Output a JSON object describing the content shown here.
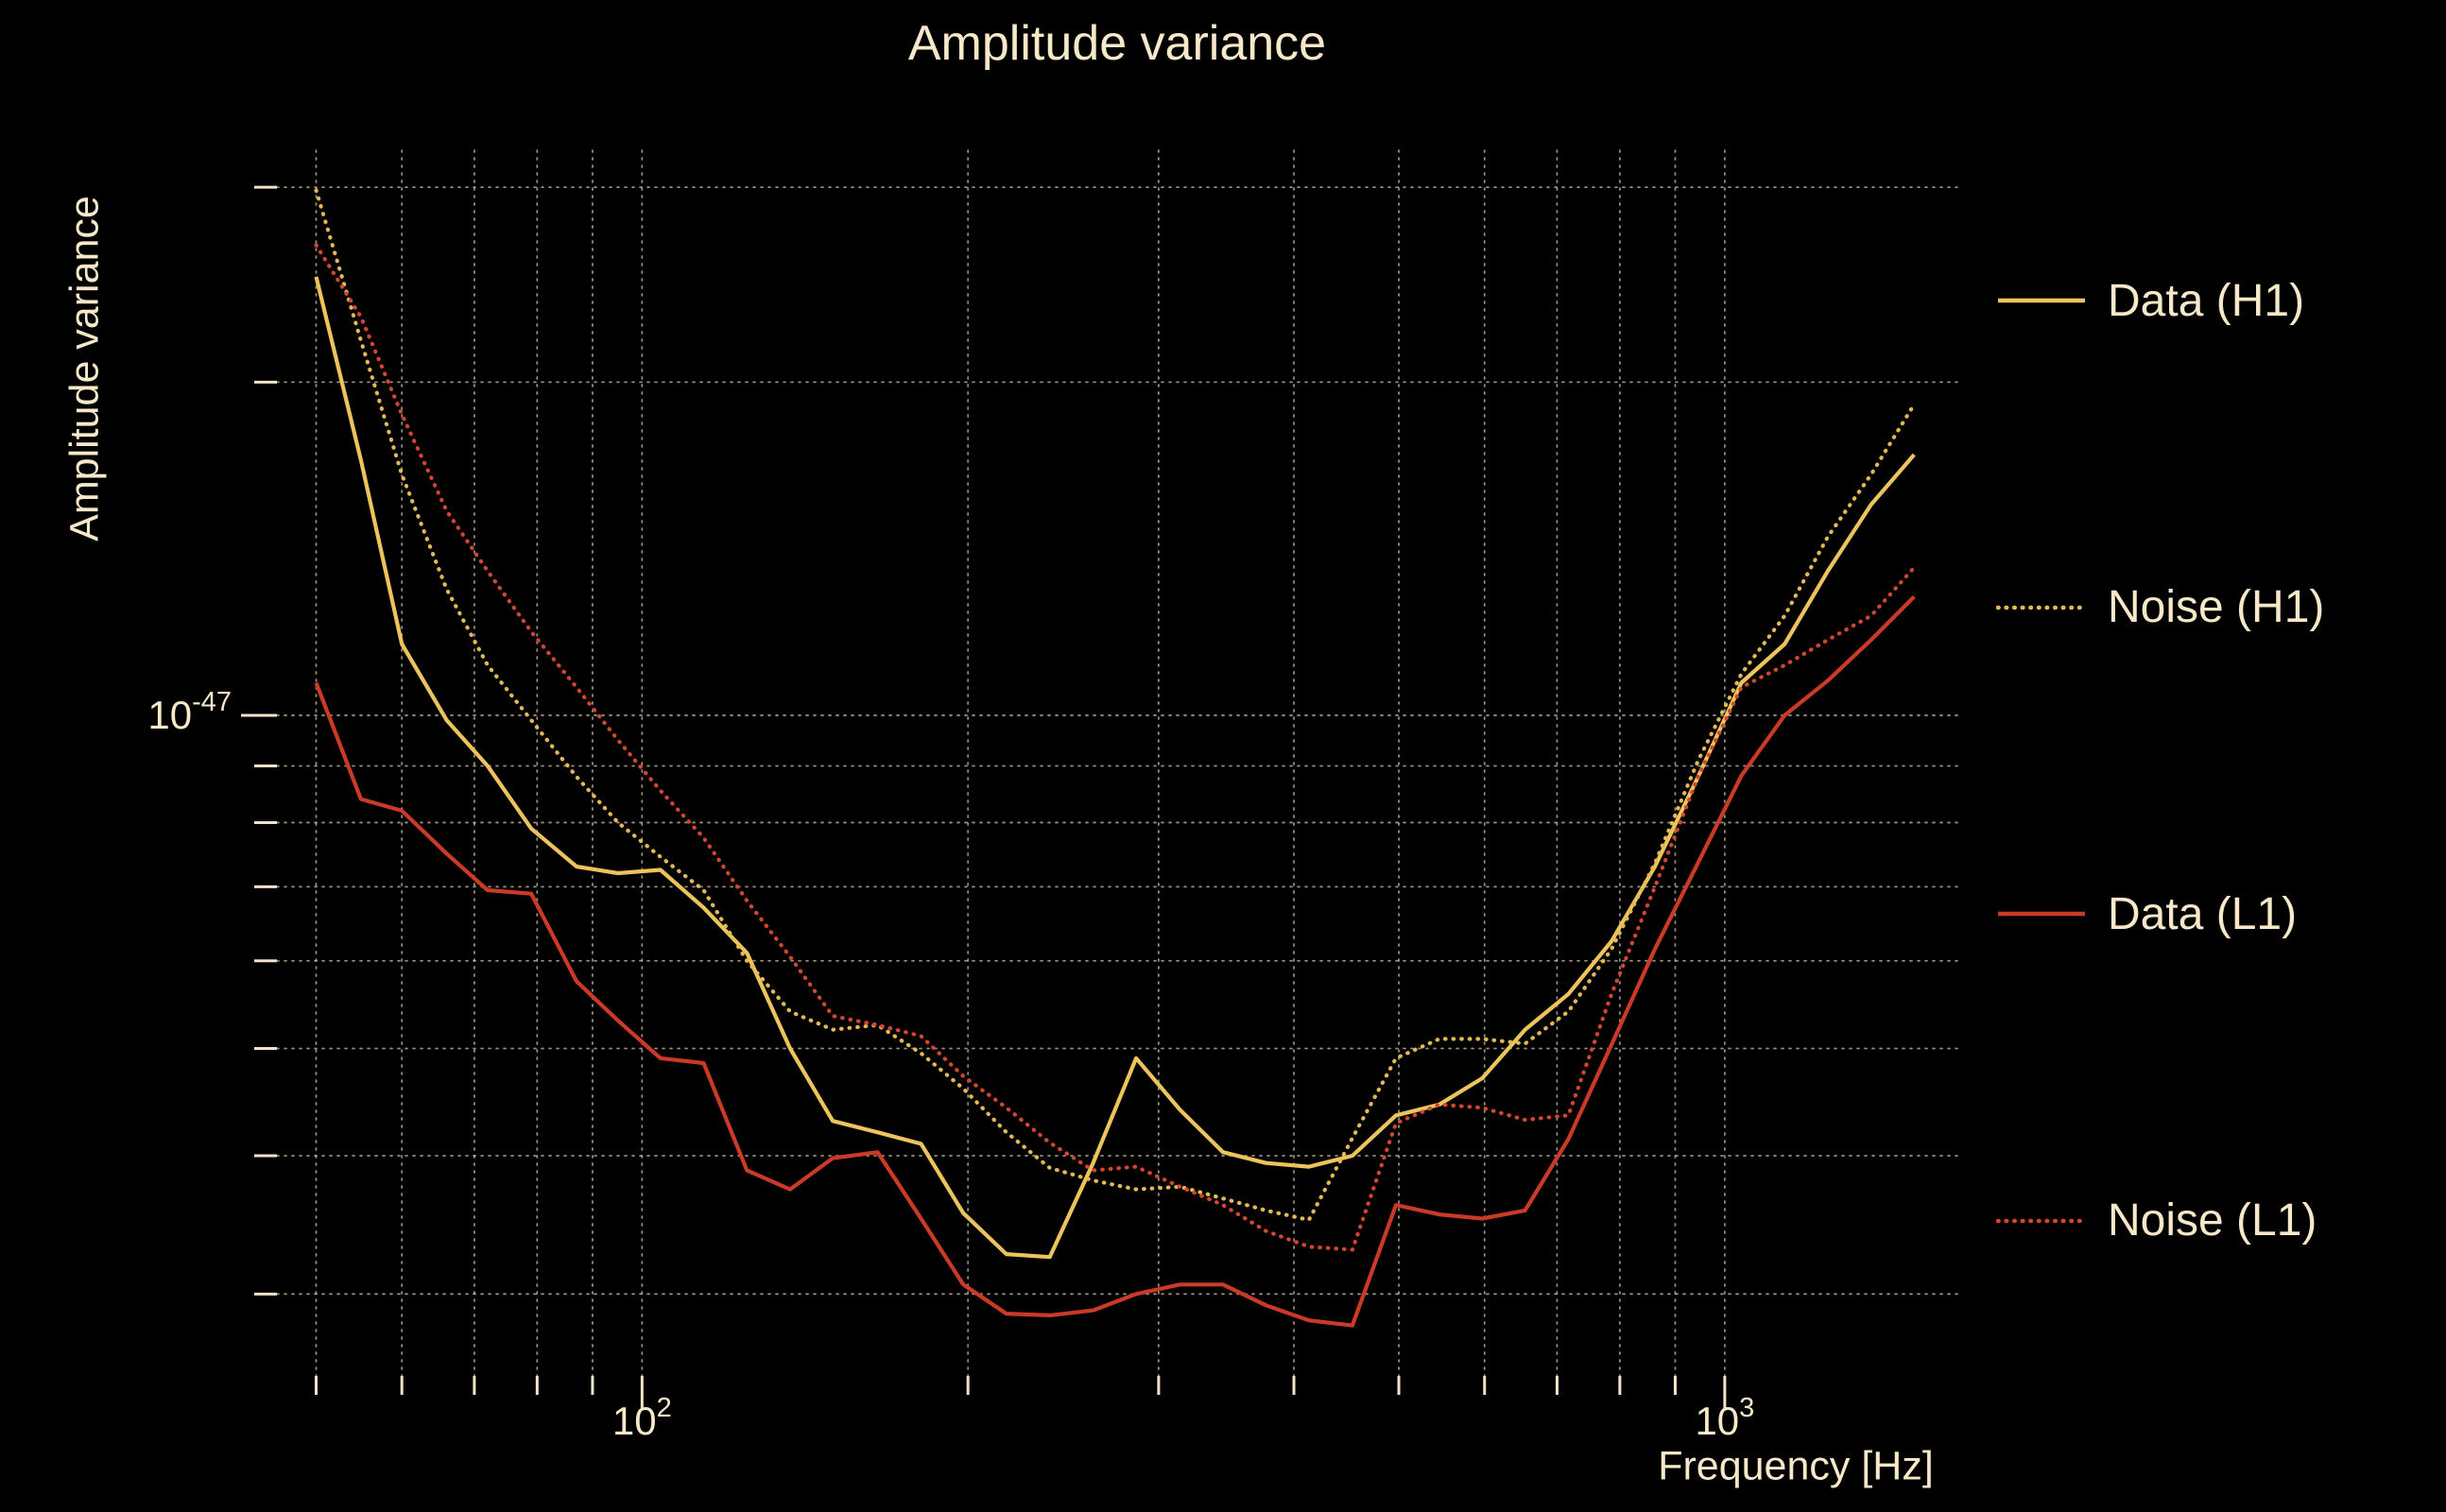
{
  "colors": {
    "background": "#000000",
    "text": "#f6e8c8",
    "grid": "#f0e4c8",
    "h1_gold": "#edc35c",
    "l1_red": "#cb3a27"
  },
  "chart_data": {
    "type": "line",
    "title": "Amplitude variance",
    "xlabel": "Frequency [Hz]",
    "ylabel": "Amplitude variance",
    "x_scale": "log",
    "y_scale": "log",
    "xlim": [
      46,
      1640
    ],
    "ylim": [
      2.53e-48,
      3.24e-47
    ],
    "grid": true,
    "legend_position": "right",
    "x_ticks": [
      {
        "value": 100,
        "base": "10",
        "exp": "2"
      },
      {
        "value": 1000,
        "base": "10",
        "exp": "3"
      }
    ],
    "y_ticks": [
      {
        "value": 1e-47,
        "base": "10",
        "exp": "-47"
      }
    ],
    "frequencies_hz": [
      50,
      55,
      60,
      66,
      72,
      79,
      87,
      95,
      104,
      114,
      125,
      137,
      150,
      165,
      181,
      198,
      217,
      238,
      261,
      286,
      314,
      344,
      377,
      413,
      453,
      497,
      545,
      597,
      654,
      717,
      786,
      862,
      945,
      1036,
      1136,
      1245,
      1365,
      1496
    ],
    "series": [
      {
        "name": "Data (H1)",
        "color": "#edc35c",
        "style": "solid",
        "values": [
          2.49e-47,
          1.7e-47,
          1.16e-47,
          9.9e-48,
          9e-48,
          7.9e-48,
          7.3e-48,
          7.2e-48,
          7.25e-48,
          6.7e-48,
          6.1e-48,
          5e-48,
          4.3e-48,
          4.2e-48,
          4.1e-48,
          3.55e-48,
          3.26e-48,
          3.24e-48,
          3.94e-48,
          4.9e-48,
          4.4e-48,
          4.03e-48,
          3.94e-48,
          3.91e-48,
          4e-48,
          4.35e-48,
          4.45e-48,
          4.7e-48,
          5.2e-48,
          5.6e-48,
          6.25e-48,
          7.3e-48,
          8.8e-48,
          1.07e-47,
          1.16e-47,
          1.35e-47,
          1.55e-47,
          1.72e-47
        ]
      },
      {
        "name": "Noise (H1)",
        "color": "#e2ba50",
        "style": "dotted",
        "values": [
          2.98e-47,
          2.18e-47,
          1.65e-47,
          1.3e-47,
          1.11e-47,
          9.9e-48,
          8.8e-48,
          8e-48,
          7.45e-48,
          6.95e-48,
          6e-48,
          5.4e-48,
          5.2e-48,
          5.25e-48,
          4.95e-48,
          4.6e-48,
          4.2e-48,
          3.9e-48,
          3.8e-48,
          3.73e-48,
          3.75e-48,
          3.66e-48,
          3.57e-48,
          3.5e-48,
          4.15e-48,
          4.9e-48,
          5.1e-48,
          5.1e-48,
          5.05e-48,
          5.4e-48,
          6.15e-48,
          7.35e-48,
          9.1e-48,
          1.09e-47,
          1.23e-47,
          1.45e-47,
          1.65e-47,
          1.91e-47
        ]
      },
      {
        "name": "Data (L1)",
        "color": "#cb3a27",
        "style": "solid",
        "values": [
          1.07e-47,
          8.4e-48,
          8.2e-48,
          7.5e-48,
          6.95e-48,
          6.9e-48,
          5.75e-48,
          5.3e-48,
          4.9e-48,
          4.85e-48,
          3.88e-48,
          3.73e-48,
          3.98e-48,
          4.03e-48,
          3.51e-48,
          3.06e-48,
          2.88e-48,
          2.87e-48,
          2.9e-48,
          3e-48,
          3.06e-48,
          3.06e-48,
          2.93e-48,
          2.84e-48,
          2.81e-48,
          3.61e-48,
          3.54e-48,
          3.51e-48,
          3.57e-48,
          4.14e-48,
          5.04e-48,
          6.15e-48,
          7.36e-48,
          8.82e-48,
          1e-47,
          1.075e-47,
          1.17e-47,
          1.28e-47
        ]
      },
      {
        "name": "Noise (L1)",
        "color": "#d2452f",
        "style": "dotted",
        "values": [
          2.66e-47,
          2.29e-47,
          1.87e-47,
          1.53e-47,
          1.35e-47,
          1.19e-47,
          1.06e-47,
          9.5e-48,
          8.55e-48,
          7.75e-48,
          6.8e-48,
          6.05e-48,
          5.35e-48,
          5.25e-48,
          5.13e-48,
          4.72e-48,
          4.42e-48,
          4.11e-48,
          3.88e-48,
          3.91e-48,
          3.75e-48,
          3.61e-48,
          3.42e-48,
          3.31e-48,
          3.29e-48,
          4.28e-48,
          4.45e-48,
          4.42e-48,
          4.31e-48,
          4.35e-48,
          5.6e-48,
          7e-48,
          8.8e-48,
          1.06e-47,
          1.11e-47,
          1.17e-47,
          1.23e-47,
          1.36e-47
        ]
      }
    ]
  }
}
